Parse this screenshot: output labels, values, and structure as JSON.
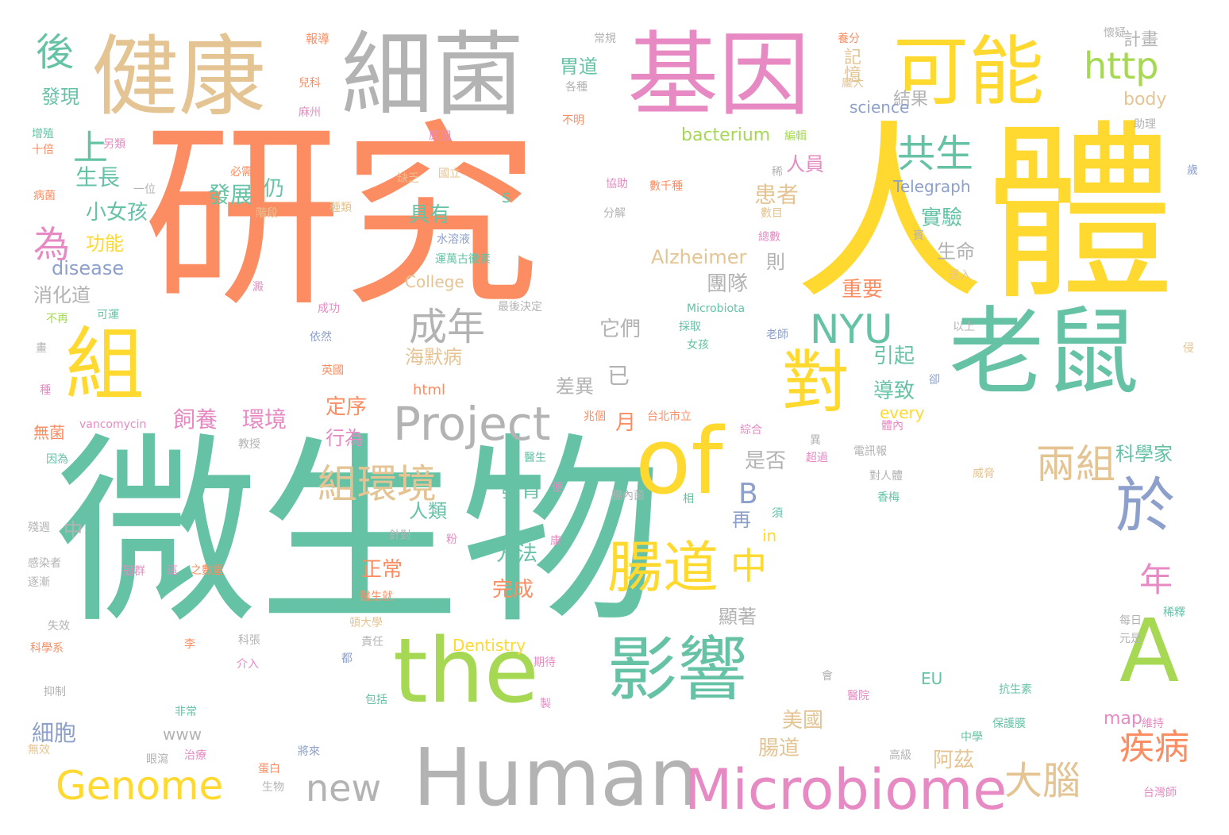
{
  "palette": {
    "teal": "#66c2a5",
    "orange": "#fc8d62",
    "blue": "#8da0cb",
    "pink": "#e78ac3",
    "green": "#a6d854",
    "yellow": "#ffd92f",
    "tan": "#e5c494",
    "gray": "#b3b3b3"
  },
  "words": [
    {
      "text": "微生物",
      "color": "teal"
    },
    {
      "text": "研究",
      "color": "orange"
    },
    {
      "text": "人體",
      "color": "yellow"
    },
    {
      "text": "基因",
      "color": "pink"
    },
    {
      "text": "細菌",
      "color": "gray"
    },
    {
      "text": "健康",
      "color": "tan"
    },
    {
      "text": "可能",
      "color": "yellow"
    },
    {
      "text": "老鼠",
      "color": "teal"
    },
    {
      "text": "the",
      "color": "green"
    },
    {
      "text": "of",
      "color": "yellow"
    },
    {
      "text": "Human",
      "color": "gray"
    },
    {
      "text": "Microbiome",
      "color": "pink"
    },
    {
      "text": "影響",
      "color": "teal"
    },
    {
      "text": "組",
      "color": "yellow"
    },
    {
      "text": "對",
      "color": "yellow"
    },
    {
      "text": "A",
      "color": "green"
    },
    {
      "text": "Project",
      "color": "gray"
    },
    {
      "text": "於",
      "color": "blue"
    },
    {
      "text": "腸道",
      "color": "yellow"
    },
    {
      "text": "Genome",
      "color": "yellow"
    },
    {
      "text": "組環境",
      "color": "tan"
    },
    {
      "text": "http",
      "color": "green"
    },
    {
      "text": "NYU",
      "color": "teal"
    },
    {
      "text": "兩組",
      "color": "tan"
    },
    {
      "text": "共生",
      "color": "teal"
    },
    {
      "text": "成年",
      "color": "gray"
    },
    {
      "text": "大腦",
      "color": "tan"
    },
    {
      "text": "疾病",
      "color": "orange"
    },
    {
      "text": "new",
      "color": "gray"
    },
    {
      "text": "中",
      "color": "yellow"
    },
    {
      "text": "後",
      "color": "teal"
    },
    {
      "text": "上",
      "color": "teal"
    },
    {
      "text": "為",
      "color": "pink"
    },
    {
      "text": "年",
      "color": "pink"
    },
    {
      "text": "B",
      "color": "blue"
    },
    {
      "text": "生長",
      "color": "teal"
    },
    {
      "text": "小女孩",
      "color": "teal"
    },
    {
      "text": "功能",
      "color": "yellow"
    },
    {
      "text": "disease",
      "color": "blue"
    },
    {
      "text": "消化道",
      "color": "gray"
    },
    {
      "text": "發現",
      "color": "teal"
    },
    {
      "text": "發展",
      "color": "teal"
    },
    {
      "text": "仍",
      "color": "teal"
    },
    {
      "text": "患者",
      "color": "tan"
    },
    {
      "text": "具有",
      "color": "teal"
    },
    {
      "text": "人員",
      "color": "pink"
    },
    {
      "text": "實驗",
      "color": "teal"
    },
    {
      "text": "生命",
      "color": "gray"
    },
    {
      "text": "則",
      "color": "gray"
    },
    {
      "text": "Alzheimer",
      "color": "tan"
    },
    {
      "text": "重要",
      "color": "orange"
    },
    {
      "text": "團隊",
      "color": "gray"
    },
    {
      "text": "它們",
      "color": "gray"
    },
    {
      "text": "海默病",
      "color": "tan"
    },
    {
      "text": "引起",
      "color": "teal"
    },
    {
      "text": "已",
      "color": "gray"
    },
    {
      "text": "差異",
      "color": "gray"
    },
    {
      "text": "導致",
      "color": "teal"
    },
    {
      "text": "飼養",
      "color": "pink"
    },
    {
      "text": "環境",
      "color": "pink"
    },
    {
      "text": "定序",
      "color": "orange"
    },
    {
      "text": "行為",
      "color": "pink"
    },
    {
      "text": "月",
      "color": "orange"
    },
    {
      "text": "是否",
      "color": "gray"
    },
    {
      "text": "科學家",
      "color": "teal"
    },
    {
      "text": "發育",
      "color": "teal"
    },
    {
      "text": "人類",
      "color": "teal"
    },
    {
      "text": "方法",
      "color": "teal"
    },
    {
      "text": "正常",
      "color": "orange"
    },
    {
      "text": "完成",
      "color": "orange"
    },
    {
      "text": "顯著",
      "color": "gray"
    },
    {
      "text": "美國",
      "color": "tan"
    },
    {
      "text": "腸道",
      "color": "tan"
    },
    {
      "text": "阿茲",
      "color": "tan"
    },
    {
      "text": "細胞",
      "color": "blue"
    },
    {
      "text": "胃道",
      "color": "teal"
    },
    {
      "text": "記憶",
      "color": "tan"
    },
    {
      "text": "計畫",
      "color": "gray"
    },
    {
      "text": "結果",
      "color": "gray"
    },
    {
      "text": "science",
      "color": "blue"
    },
    {
      "text": "body",
      "color": "tan"
    },
    {
      "text": "bacterium",
      "color": "green"
    },
    {
      "text": "Telegraph",
      "color": "blue"
    },
    {
      "text": "College",
      "color": "tan"
    },
    {
      "text": "every",
      "color": "yellow"
    },
    {
      "text": "html",
      "color": "orange"
    },
    {
      "text": "Dentistry",
      "color": "yellow"
    },
    {
      "text": "map",
      "color": "pink"
    },
    {
      "text": "EU",
      "color": "teal"
    },
    {
      "text": "www",
      "color": "gray"
    },
    {
      "text": "in",
      "color": "yellow"
    },
    {
      "text": "s",
      "color": "teal"
    },
    {
      "text": "中",
      "color": "gray"
    },
    {
      "text": "再",
      "color": "blue"
    },
    {
      "text": "報導",
      "color": "orange"
    },
    {
      "text": "常規",
      "color": "gray"
    },
    {
      "text": "養分",
      "color": "orange"
    },
    {
      "text": "懷疑",
      "color": "gray"
    },
    {
      "text": "兒科",
      "color": "orange"
    },
    {
      "text": "各種",
      "color": "gray"
    },
    {
      "text": "龐大",
      "color": "tan"
    },
    {
      "text": "麻州",
      "color": "pink"
    },
    {
      "text": "不明",
      "color": "orange"
    },
    {
      "text": "增殖",
      "color": "teal"
    },
    {
      "text": "十倍",
      "color": "orange"
    },
    {
      "text": "另類",
      "color": "pink"
    },
    {
      "text": "原因",
      "color": "pink"
    },
    {
      "text": "編輯",
      "color": "green"
    },
    {
      "text": "助理",
      "color": "gray"
    },
    {
      "text": "必需",
      "color": "orange"
    },
    {
      "text": "缺乏",
      "color": "tan"
    },
    {
      "text": "國立",
      "color": "tan"
    },
    {
      "text": "稀",
      "color": "gray"
    },
    {
      "text": "歲",
      "color": "blue"
    },
    {
      "text": "一位",
      "color": "gray"
    },
    {
      "text": "協助",
      "color": "pink"
    },
    {
      "text": "數千種",
      "color": "orange"
    },
    {
      "text": "病菌",
      "color": "orange"
    },
    {
      "text": "種類",
      "color": "tan"
    },
    {
      "text": "分解",
      "color": "gray"
    },
    {
      "text": "數目",
      "color": "tan"
    },
    {
      "text": "階段",
      "color": "tan"
    },
    {
      "text": "水溶液",
      "color": "blue"
    },
    {
      "text": "總數",
      "color": "pink"
    },
    {
      "text": "賓",
      "color": "gray"
    },
    {
      "text": "運萬古黴素",
      "color": "teal"
    },
    {
      "text": "送入",
      "color": "tan"
    },
    {
      "text": "澱",
      "color": "pink"
    },
    {
      "text": "成功",
      "color": "pink"
    },
    {
      "text": "最後決定",
      "color": "gray"
    },
    {
      "text": "Microbiota",
      "color": "teal"
    },
    {
      "text": "不再",
      "color": "green"
    },
    {
      "text": "可運",
      "color": "teal"
    },
    {
      "text": "採取",
      "color": "teal"
    },
    {
      "text": "以上",
      "color": "gray"
    },
    {
      "text": "畫",
      "color": "gray"
    },
    {
      "text": "依然",
      "color": "blue"
    },
    {
      "text": "老師",
      "color": "blue"
    },
    {
      "text": "女孩",
      "color": "teal"
    },
    {
      "text": "侵",
      "color": "tan"
    },
    {
      "text": "英國",
      "color": "orange"
    },
    {
      "text": "卻",
      "color": "blue"
    },
    {
      "text": "種",
      "color": "pink"
    },
    {
      "text": "兆個",
      "color": "orange"
    },
    {
      "text": "台北市立",
      "color": "orange"
    },
    {
      "text": "無菌",
      "color": "orange"
    },
    {
      "text": "教授",
      "color": "gray"
    },
    {
      "text": "vancomycin",
      "color": "pink"
    },
    {
      "text": "綜合",
      "color": "pink"
    },
    {
      "text": "體內",
      "color": "pink"
    },
    {
      "text": "因為",
      "color": "teal"
    },
    {
      "text": "電訊報",
      "color": "gray"
    },
    {
      "text": "超過",
      "color": "pink"
    },
    {
      "text": "異",
      "color": "gray"
    },
    {
      "text": "醫生",
      "color": "teal"
    },
    {
      "text": "威脅",
      "color": "tan"
    },
    {
      "text": "便",
      "color": "pink"
    },
    {
      "text": "腸內菌",
      "color": "gray"
    },
    {
      "text": "相",
      "color": "teal"
    },
    {
      "text": "對人體",
      "color": "gray"
    },
    {
      "text": "香梅",
      "color": "teal"
    },
    {
      "text": "殘週",
      "color": "gray"
    },
    {
      "text": "針對",
      "color": "gray"
    },
    {
      "text": "粉",
      "color": "pink"
    },
    {
      "text": "康",
      "color": "pink"
    },
    {
      "text": "須",
      "color": "teal"
    },
    {
      "text": "感染者",
      "color": "gray"
    },
    {
      "text": "逐漸",
      "color": "gray"
    },
    {
      "text": "冠群",
      "color": "pink"
    },
    {
      "text": "這",
      "color": "pink"
    },
    {
      "text": "之數量",
      "color": "orange"
    },
    {
      "text": "醫生就",
      "color": "orange"
    },
    {
      "text": "稀釋",
      "color": "teal"
    },
    {
      "text": "頓大學",
      "color": "tan"
    },
    {
      "text": "每日",
      "color": "gray"
    },
    {
      "text": "失效",
      "color": "gray"
    },
    {
      "text": "李",
      "color": "orange"
    },
    {
      "text": "責任",
      "color": "gray"
    },
    {
      "text": "元是",
      "color": "gray"
    },
    {
      "text": "科學系",
      "color": "orange"
    },
    {
      "text": "科張",
      "color": "gray"
    },
    {
      "text": "介入",
      "color": "pink"
    },
    {
      "text": "都",
      "color": "blue"
    },
    {
      "text": "期待",
      "color": "pink"
    },
    {
      "text": "會",
      "color": "gray"
    },
    {
      "text": "抑制",
      "color": "gray"
    },
    {
      "text": "醫院",
      "color": "pink"
    },
    {
      "text": "包括",
      "color": "teal"
    },
    {
      "text": "製",
      "color": "pink"
    },
    {
      "text": "抗生素",
      "color": "teal"
    },
    {
      "text": "非常",
      "color": "teal"
    },
    {
      "text": "保護膜",
      "color": "teal"
    },
    {
      "text": "維持",
      "color": "pink"
    },
    {
      "text": "無效",
      "color": "tan"
    },
    {
      "text": "治療",
      "color": "pink"
    },
    {
      "text": "將來",
      "color": "blue"
    },
    {
      "text": "中學",
      "color": "teal"
    },
    {
      "text": "眼瀉",
      "color": "gray"
    },
    {
      "text": "蛋白",
      "color": "orange"
    },
    {
      "text": "高級",
      "color": "gray"
    },
    {
      "text": "生物",
      "color": "gray"
    },
    {
      "text": "台灣師",
      "color": "pink"
    }
  ]
}
